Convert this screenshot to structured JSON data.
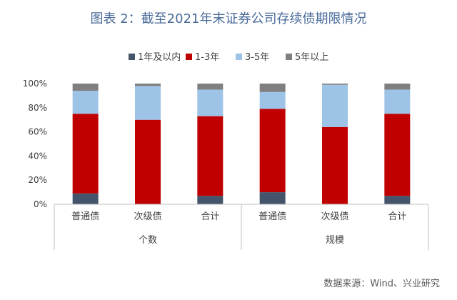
{
  "title": "图表 2：截至2021年末证券公司存续债期限情况",
  "source": "数据来源：Wind、兴业研究",
  "colors": {
    "within_1y": "#44546a",
    "y1_3": "#c00000",
    "y3_5": "#9dc3e6",
    "over5": "#7f7f7f",
    "axis": "#bfbfbf",
    "title": "#4a6b9a"
  },
  "chart_data": {
    "type": "bar",
    "stacked": true,
    "percent": true,
    "title": "图表 2：截至2021年末证券公司存续债期限情况",
    "xlabel": "",
    "ylabel": "",
    "ylim": [
      0,
      100
    ],
    "yticks": [
      "0%",
      "20%",
      "40%",
      "60%",
      "80%",
      "100%"
    ],
    "legend_position": "top",
    "groups": [
      "个数",
      "规模"
    ],
    "categories": [
      "普通债",
      "次级债",
      "合计",
      "普通债",
      "次级债",
      "合计"
    ],
    "series": [
      {
        "name": "1年及以内",
        "color": "#44546a",
        "values": [
          9,
          0,
          7,
          10,
          0,
          7
        ]
      },
      {
        "name": "1-3年",
        "color": "#c00000",
        "values": [
          66,
          70,
          66,
          69,
          64,
          68
        ]
      },
      {
        "name": "3-5年",
        "color": "#9dc3e6",
        "values": [
          19,
          28,
          22,
          14,
          35,
          20
        ]
      },
      {
        "name": "5年以上",
        "color": "#7f7f7f",
        "values": [
          6,
          2,
          5,
          7,
          1,
          5
        ]
      }
    ]
  }
}
